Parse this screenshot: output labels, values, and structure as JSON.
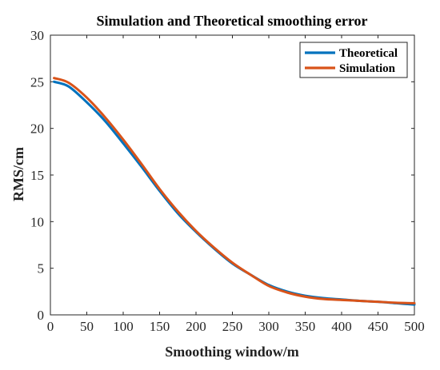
{
  "chart_data": {
    "type": "line",
    "title": "Simulation and Theoretical smoothing error",
    "xlabel": "Smoothing window/m",
    "ylabel": "RMS/cm",
    "xlim": [
      0,
      500
    ],
    "ylim": [
      0,
      30
    ],
    "xticks": [
      0,
      50,
      100,
      150,
      200,
      250,
      300,
      350,
      400,
      450,
      500
    ],
    "yticks": [
      0,
      5,
      10,
      15,
      20,
      25,
      30
    ],
    "legend_position": "top-right",
    "grid": false,
    "series": [
      {
        "name": "Theoretical",
        "color": "#0072BD",
        "x": [
          5,
          25,
          50,
          75,
          100,
          125,
          150,
          175,
          200,
          225,
          250,
          275,
          300,
          325,
          350,
          375,
          400,
          425,
          450,
          475,
          500
        ],
        "y": [
          25.0,
          24.5,
          22.8,
          20.8,
          18.4,
          15.9,
          13.3,
          10.9,
          8.9,
          7.1,
          5.5,
          4.3,
          3.2,
          2.5,
          2.05,
          1.8,
          1.65,
          1.5,
          1.4,
          1.25,
          1.1
        ]
      },
      {
        "name": "Simulation",
        "color": "#D95319",
        "x": [
          5,
          25,
          50,
          75,
          100,
          125,
          150,
          175,
          200,
          225,
          250,
          275,
          300,
          325,
          350,
          375,
          400,
          425,
          450,
          475,
          500
        ],
        "y": [
          25.4,
          24.9,
          23.3,
          21.2,
          18.8,
          16.2,
          13.5,
          11.1,
          9.0,
          7.2,
          5.6,
          4.3,
          3.1,
          2.4,
          1.95,
          1.7,
          1.6,
          1.5,
          1.4,
          1.3,
          1.25
        ]
      }
    ]
  }
}
